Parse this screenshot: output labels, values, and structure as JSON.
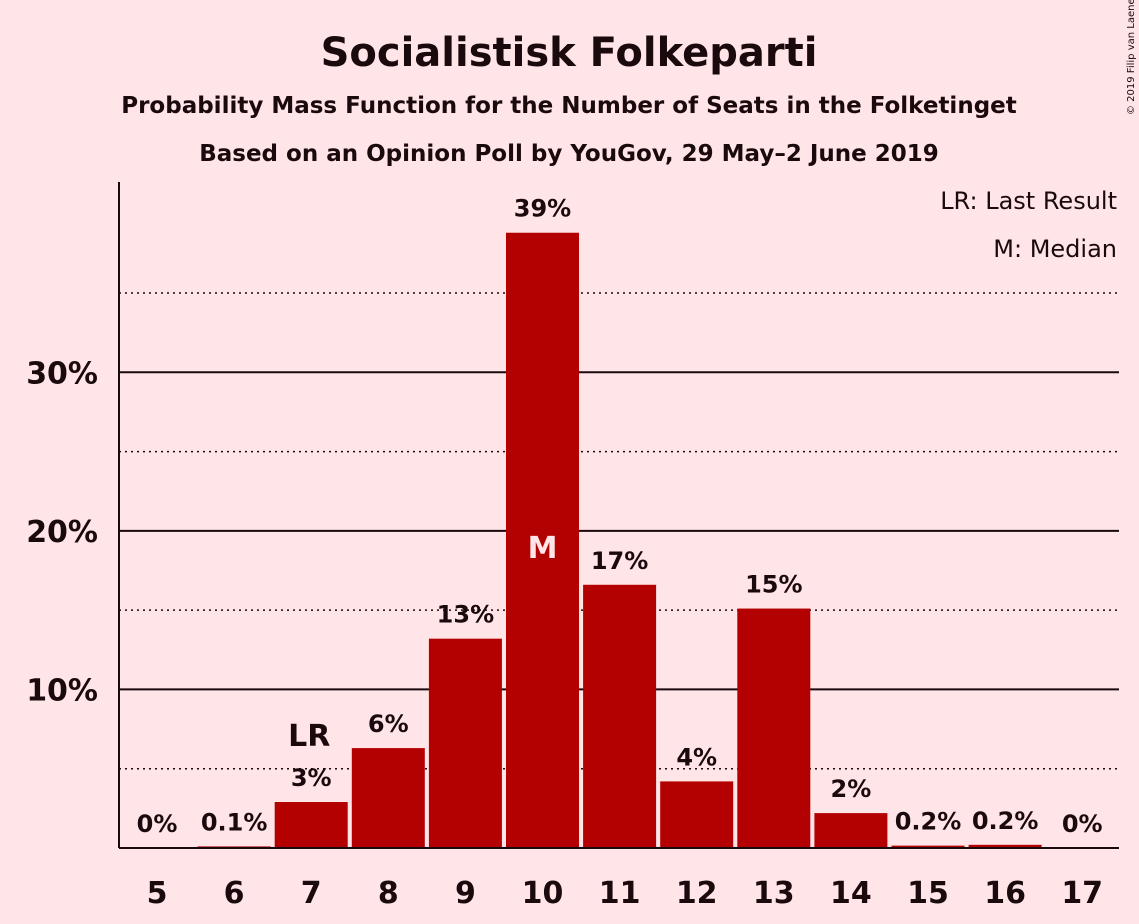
{
  "chart_data": {
    "type": "bar",
    "title": "Socialistisk Folkeparti",
    "subtitle": "Probability Mass Function for the Number of Seats in the Folketinget",
    "subtitle2": "Based on an Opinion Poll by YouGov, 29 May–2 June 2019",
    "copyright": "© 2019 Filip van Laenen",
    "legend": [
      "LR: Last Result",
      "M: Median"
    ],
    "legend_position": "top-right",
    "categories": [
      "5",
      "6",
      "7",
      "8",
      "9",
      "10",
      "11",
      "12",
      "13",
      "14",
      "15",
      "16",
      "17"
    ],
    "values": [
      0,
      0.1,
      2.9,
      6.3,
      13.2,
      38.8,
      16.6,
      4.2,
      15.1,
      2.2,
      0.15,
      0.2,
      0
    ],
    "labels": [
      "0%",
      "0.1%",
      "3%",
      "6%",
      "13%",
      "39%",
      "17%",
      "4%",
      "15%",
      "2%",
      "0.2%",
      "0.2%",
      "0%"
    ],
    "yticks": [
      10,
      20,
      30
    ],
    "ytick_labels": [
      "10%",
      "20%",
      "30%"
    ],
    "ylim": [
      0,
      42
    ],
    "grid": "solid at 10% steps, dotted at 5% intermediates",
    "last_result": {
      "category": "7",
      "label": "LR"
    },
    "median": {
      "category": "10",
      "label": "M"
    },
    "colors": {
      "bar": "#b30000",
      "background": "#ffe4e8",
      "text": "#1a0a0e",
      "median_text": "#ffe4e8"
    }
  }
}
